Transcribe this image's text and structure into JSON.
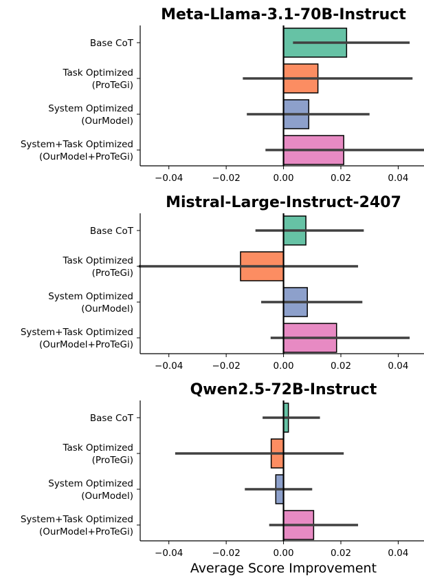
{
  "colors": {
    "Base CoT": "#66c2a5",
    "Task Optimized (ProTeGi)": "#fc8d62",
    "System Optimized (OurModel)": "#8da0cb",
    "System+Task Optimized (OurModel+ProTeGi)": "#e78ac3",
    "error_bar": "#404040",
    "zero_line": "#000000"
  },
  "chart_data": {
    "type": "bar",
    "orientation": "horizontal",
    "xlabel": "Average Score Improvement",
    "xlim": [
      -0.05,
      0.049
    ],
    "xticks": [
      "−0.04",
      "−0.02",
      "0.00",
      "0.02",
      "0.04"
    ],
    "xtick_values": [
      -0.04,
      -0.02,
      0.0,
      0.02,
      0.04
    ],
    "grid": false,
    "categories": [
      [
        "Base CoT"
      ],
      [
        "Task Optimized",
        "(ProTeGi)"
      ],
      [
        "System Optimized",
        "(OurModel)"
      ],
      [
        "System+Task Optimized",
        "(OurModel+ProTeGi)"
      ]
    ],
    "panels": [
      {
        "title": "Meta-Llama-3.1-70B-Instruct",
        "values": [
          0.022,
          0.012,
          0.0088,
          0.021
        ],
        "ci_low": [
          0.0033,
          -0.0142,
          -0.0128,
          -0.0063
        ],
        "ci_high": [
          0.044,
          0.045,
          0.03,
          0.049
        ]
      },
      {
        "title": "Mistral-Large-Instruct-2407",
        "values": [
          0.0078,
          -0.015,
          0.0083,
          0.0185
        ],
        "ci_low": [
          -0.0098,
          -0.0505,
          -0.0078,
          -0.0045
        ],
        "ci_high": [
          0.028,
          0.026,
          0.0275,
          0.044
        ]
      },
      {
        "title": "Qwen2.5-72B-Instruct",
        "values": [
          0.0017,
          -0.0043,
          -0.0027,
          0.0105
        ],
        "ci_low": [
          -0.0073,
          -0.0378,
          -0.0135,
          -0.005
        ],
        "ci_high": [
          0.0127,
          0.021,
          0.01,
          0.026
        ]
      }
    ]
  }
}
